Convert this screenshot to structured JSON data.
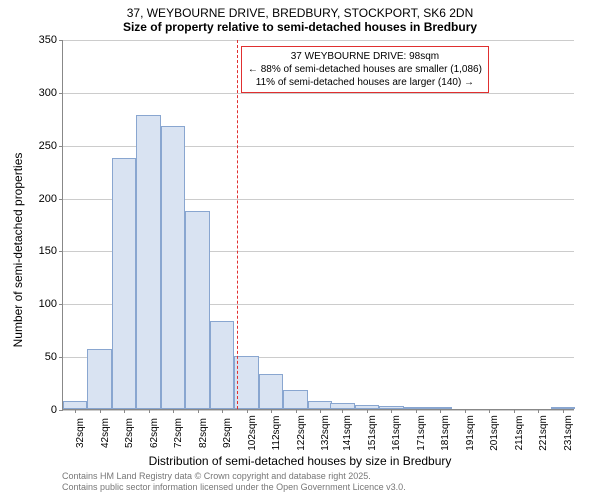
{
  "title": {
    "line1": "37, WEYBOURNE DRIVE, BREDBURY, STOCKPORT, SK6 2DN",
    "line2": "Size of property relative to semi-detached houses in Bredbury"
  },
  "chart": {
    "type": "histogram",
    "ylabel": "Number of semi-detached properties",
    "xlabel": "Distribution of semi-detached houses by size in Bredbury",
    "ylim": [
      0,
      350
    ],
    "yticks": [
      0,
      50,
      100,
      150,
      200,
      250,
      300,
      350
    ],
    "xticks": [
      "32sqm",
      "42sqm",
      "52sqm",
      "62sqm",
      "72sqm",
      "82sqm",
      "92sqm",
      "102sqm",
      "112sqm",
      "122sqm",
      "132sqm",
      "141sqm",
      "151sqm",
      "161sqm",
      "171sqm",
      "181sqm",
      "191sqm",
      "201sqm",
      "211sqm",
      "221sqm",
      "231sqm"
    ],
    "xtick_positions": [
      32,
      42,
      52,
      62,
      72,
      82,
      92,
      102,
      112,
      122,
      132,
      141,
      151,
      161,
      171,
      181,
      191,
      201,
      211,
      221,
      231
    ],
    "xlim": [
      27,
      236
    ],
    "bars": [
      {
        "x": 32,
        "value": 8
      },
      {
        "x": 42,
        "value": 57
      },
      {
        "x": 52,
        "value": 237
      },
      {
        "x": 62,
        "value": 278
      },
      {
        "x": 72,
        "value": 268
      },
      {
        "x": 82,
        "value": 187
      },
      {
        "x": 92,
        "value": 83
      },
      {
        "x": 102,
        "value": 50
      },
      {
        "x": 112,
        "value": 33
      },
      {
        "x": 122,
        "value": 18
      },
      {
        "x": 132,
        "value": 8
      },
      {
        "x": 141,
        "value": 6
      },
      {
        "x": 151,
        "value": 4
      },
      {
        "x": 161,
        "value": 3
      },
      {
        "x": 171,
        "value": 1
      },
      {
        "x": 181,
        "value": 2
      },
      {
        "x": 191,
        "value": 0
      },
      {
        "x": 201,
        "value": 0
      },
      {
        "x": 211,
        "value": 0
      },
      {
        "x": 221,
        "value": 0
      },
      {
        "x": 231,
        "value": 1
      }
    ],
    "bar_color": "#d9e3f2",
    "bar_border_color": "#89a6d0",
    "grid_color": "#cccccc",
    "marker": {
      "x": 98,
      "color": "#e03030"
    },
    "annotation": {
      "line1": "37 WEYBOURNE DRIVE: 98sqm",
      "line2": "← 88% of semi-detached houses are smaller (1,086)",
      "line3": "11% of semi-detached houses are larger (140) →"
    }
  },
  "attribution": {
    "line1": "Contains HM Land Registry data © Crown copyright and database right 2025.",
    "line2": "Contains public sector information licensed under the Open Government Licence v3.0."
  }
}
